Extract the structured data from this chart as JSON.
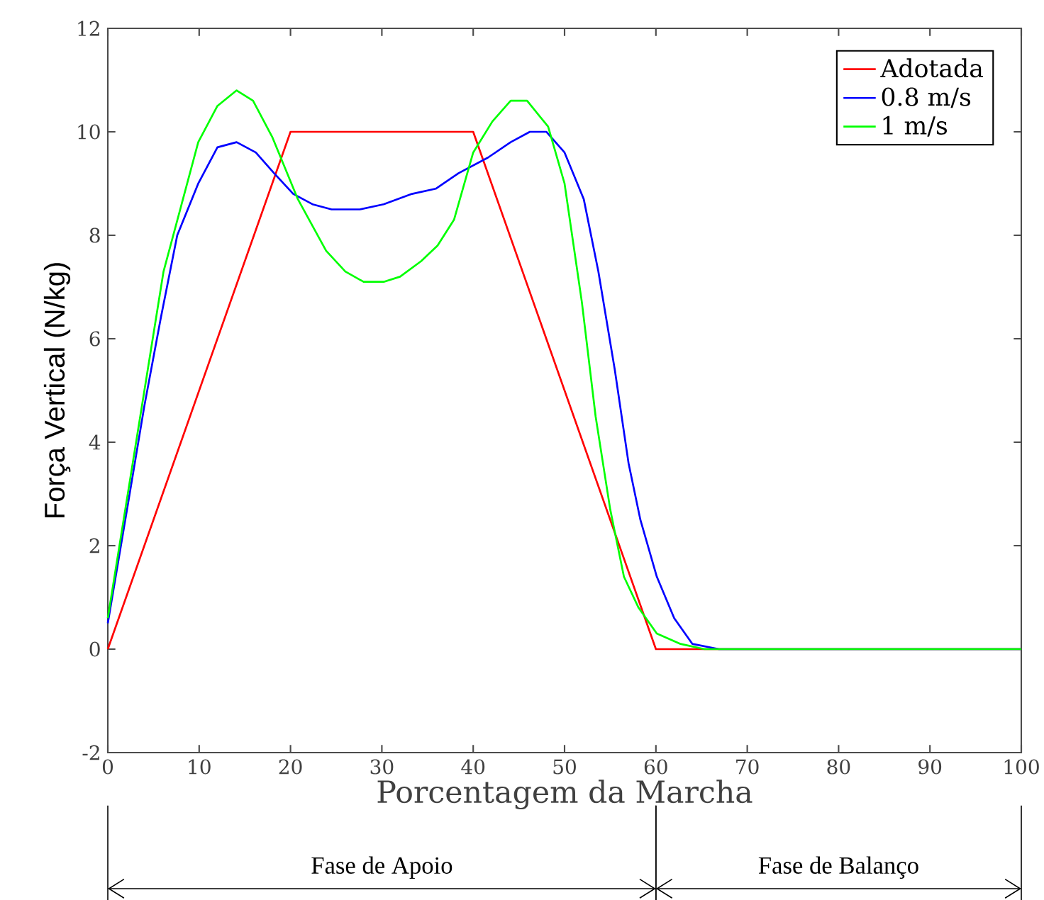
{
  "chart_data": {
    "type": "line",
    "xlabel": "Porcentagem da Marcha",
    "ylabel": "Força Vertical (N/kg)",
    "xlim": [
      0,
      100
    ],
    "ylim": [
      -2,
      12
    ],
    "xticks": [
      0,
      10,
      20,
      30,
      40,
      50,
      60,
      70,
      80,
      90,
      100
    ],
    "yticks": [
      -2,
      0,
      2,
      4,
      6,
      8,
      10,
      12
    ],
    "legend": "top right",
    "series": [
      {
        "name": "Adotada",
        "color": "#ff0000",
        "x": [
          0,
          20,
          40,
          60,
          100
        ],
        "values": [
          0,
          10,
          10,
          0,
          0
        ]
      },
      {
        "name": "0.8 m/s",
        "color": "#0000ff",
        "x": [
          0,
          2.2,
          4,
          5.8,
          7.6,
          9.9,
          12,
          14.1,
          16.2,
          18.2,
          20.3,
          22.4,
          24.5,
          27.6,
          30.2,
          33.3,
          35.9,
          38.4,
          41.6,
          44.1,
          46.2,
          48,
          50,
          52.1,
          53.7,
          55.5,
          57,
          58.3,
          60.1,
          62,
          64,
          66.9,
          100
        ],
        "values": [
          0.5,
          2.8,
          4.7,
          6.4,
          8,
          9,
          9.7,
          9.8,
          9.6,
          9.2,
          8.8,
          8.6,
          8.5,
          8.5,
          8.6,
          8.8,
          8.9,
          9.2,
          9.5,
          9.8,
          10,
          10,
          9.6,
          8.7,
          7.3,
          5.4,
          3.6,
          2.5,
          1.4,
          0.6,
          0.1,
          0,
          0
        ]
      },
      {
        "name": "1 m/s",
        "color": "#00ff00",
        "x": [
          0,
          6.1,
          9.9,
          12,
          14.1,
          15.9,
          18,
          20.8,
          23.9,
          26,
          28,
          30.2,
          32,
          34.3,
          36.1,
          37.9,
          40,
          42.1,
          44.1,
          45.9,
          48.2,
          50,
          51.9,
          53.4,
          55,
          56.5,
          58.1,
          60.1,
          62.7,
          65.3,
          100
        ],
        "values": [
          0.6,
          7.3,
          9.8,
          10.5,
          10.8,
          10.6,
          9.9,
          8.7,
          7.7,
          7.3,
          7.1,
          7.1,
          7.2,
          7.5,
          7.8,
          8.3,
          9.6,
          10.2,
          10.6,
          10.6,
          10.1,
          9,
          6.7,
          4.5,
          2.7,
          1.4,
          0.8,
          0.3,
          0.1,
          0,
          0
        ]
      }
    ],
    "annotations": [
      "Fase de Apoio",
      "Fase de Balanço"
    ]
  }
}
